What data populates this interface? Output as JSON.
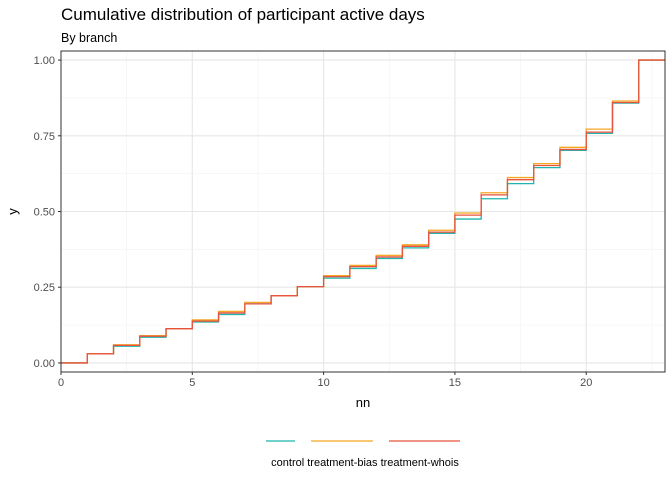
{
  "chart_data": {
    "type": "line",
    "step": true,
    "title": "Cumulative distribution of participant active days",
    "subtitle": "By branch",
    "xlabel": "nn",
    "ylabel": "y",
    "xlim": [
      0,
      23
    ],
    "ylim": [
      -0.03,
      1.03
    ],
    "xticks": [
      0,
      5,
      10,
      15,
      20
    ],
    "xtick_labels": [
      "0",
      "5",
      "10",
      "15",
      "20"
    ],
    "yticks": [
      0,
      0.25,
      0.5,
      0.75,
      1.0
    ],
    "ytick_labels": [
      "0.00",
      "0.25",
      "0.50",
      "0.75",
      "1.00"
    ],
    "grid": true,
    "legend_position": "bottom",
    "legend_text": "control treatment-bias treatment-whois",
    "x": [
      0,
      1,
      2,
      3,
      4,
      5,
      6,
      7,
      8,
      9,
      10,
      11,
      12,
      13,
      14,
      15,
      16,
      17,
      18,
      19,
      20,
      21,
      22,
      23
    ],
    "series": [
      {
        "name": "control",
        "color": "#1FB5AC",
        "values": [
          0,
          0.03,
          0.055,
          0.085,
          0.113,
          0.135,
          0.16,
          0.195,
          0.222,
          0.252,
          0.28,
          0.312,
          0.345,
          0.38,
          0.428,
          0.475,
          0.542,
          0.592,
          0.645,
          0.702,
          0.758,
          0.858,
          1.0,
          1.0
        ]
      },
      {
        "name": "treatment-bias",
        "color": "#F5A623",
        "values": [
          0,
          0.03,
          0.06,
          0.09,
          0.113,
          0.142,
          0.17,
          0.2,
          0.222,
          0.252,
          0.288,
          0.322,
          0.355,
          0.39,
          0.438,
          0.495,
          0.562,
          0.612,
          0.658,
          0.712,
          0.772,
          0.865,
          1.0,
          1.0
        ]
      },
      {
        "name": "treatment-whois",
        "color": "#E8533F",
        "values": [
          0,
          0.03,
          0.058,
          0.088,
          0.113,
          0.138,
          0.165,
          0.195,
          0.222,
          0.252,
          0.285,
          0.318,
          0.35,
          0.385,
          0.432,
          0.488,
          0.555,
          0.605,
          0.652,
          0.705,
          0.762,
          0.86,
          1.0,
          1.0
        ]
      }
    ]
  }
}
